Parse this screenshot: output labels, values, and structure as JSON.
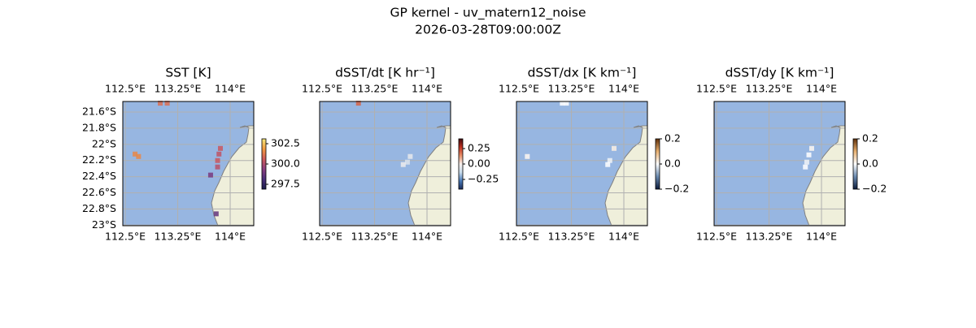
{
  "title": "GP kernel - uv_matern12_noise",
  "subtitle": "2026-03-28T09:00:00Z",
  "map": {
    "xlim": [
      112.465,
      114.337
    ],
    "ylim": [
      -23.007,
      -21.469
    ],
    "xticks": [
      {
        "value": 112.5,
        "label": "112.5°E"
      },
      {
        "value": 113.25,
        "label": "113.25°E"
      },
      {
        "value": 114,
        "label": "114°E"
      }
    ],
    "yticks": [
      {
        "value": -21.6,
        "label": "21.6°S"
      },
      {
        "value": -21.8,
        "label": "21.8°S"
      },
      {
        "value": -22,
        "label": "22°S"
      },
      {
        "value": -22.2,
        "label": "22.2°S"
      },
      {
        "value": -22.4,
        "label": "22.4°S"
      },
      {
        "value": -22.6,
        "label": "22.6°S"
      },
      {
        "value": -22.8,
        "label": "22.8°S"
      },
      {
        "value": -23,
        "label": "23°S"
      }
    ],
    "land_color": "#efefdb",
    "ocean_color": "#97b6e1",
    "coast_color": "#808080",
    "grid_color": "#b0b0b0"
  },
  "panels": [
    {
      "title": "SST [K]",
      "lat_labels": true,
      "cells": [
        [
          113.0,
          -21.49,
          301
        ],
        [
          113.1,
          -21.49,
          301
        ],
        [
          112.64,
          -22.12,
          301.5
        ],
        [
          112.69,
          -22.15,
          301.5
        ],
        [
          113.86,
          -22.05,
          300.5
        ],
        [
          113.84,
          -22.12,
          300.3
        ],
        [
          113.82,
          -22.2,
          300.5
        ],
        [
          113.82,
          -22.28,
          300.2
        ],
        [
          113.72,
          -22.38,
          299
        ],
        [
          113.8,
          -22.86,
          298.6
        ]
      ],
      "colorbar": {
        "lim": [
          296.9,
          303.1
        ],
        "ticks": [
          {
            "value": 302.5,
            "label": "302.5"
          },
          {
            "value": 300,
            "label": "300.0"
          },
          {
            "value": 297.5,
            "label": "297.5"
          }
        ],
        "colormap": [
          "#1a1c4a",
          "#4b2f7a",
          "#8c3f80",
          "#d05a5a",
          "#f29a40",
          "#f5e87a"
        ]
      }
    },
    {
      "title": "dSST/dt [K hr⁻¹]",
      "lat_labels": false,
      "cells": [
        [
          113.02,
          -21.49,
          0.2
        ],
        [
          113.76,
          -22.15,
          -0.05
        ],
        [
          113.72,
          -22.22,
          -0.08
        ],
        [
          113.66,
          -22.25,
          -0.03
        ]
      ],
      "colorbar": {
        "lim": [
          -0.408,
          0.408
        ],
        "ticks": [
          {
            "value": 0.25,
            "label": "0.25"
          },
          {
            "value": 0,
            "label": "0.00"
          },
          {
            "value": -0.25,
            "label": "−0.25"
          }
        ],
        "colormap": [
          "#1a2a5a",
          "#4a7ab8",
          "#c8dcec",
          "#f8f0ec",
          "#e8906a",
          "#c03020",
          "#400a10"
        ]
      }
    },
    {
      "title": "dSST/dx [K km⁻¹]",
      "lat_labels": false,
      "cells": [
        [
          113.12,
          -21.49,
          0
        ],
        [
          113.18,
          -21.49,
          0
        ],
        [
          112.62,
          -22.15,
          0.01
        ],
        [
          113.86,
          -22.05,
          0.02
        ],
        [
          113.8,
          -22.2,
          -0.01
        ],
        [
          113.77,
          -22.25,
          0
        ]
      ],
      "colorbar": {
        "lim": [
          -0.2,
          0.2
        ],
        "ticks": [
          {
            "value": 0.2,
            "label": "0.2"
          },
          {
            "value": 0,
            "label": "0.0"
          },
          {
            "value": -0.2,
            "label": "−0.2"
          }
        ],
        "colormap": [
          "#0a1a3a",
          "#6a8ab0",
          "#ffffff",
          "#e8b070",
          "#60300a"
        ]
      }
    },
    {
      "title": "dSST/dy [K km⁻¹]",
      "lat_labels": false,
      "cells": [
        [
          113.86,
          -22.05,
          0.01
        ],
        [
          113.82,
          -22.13,
          0
        ],
        [
          113.79,
          -22.22,
          -0.01
        ],
        [
          113.77,
          -22.28,
          0
        ]
      ],
      "colorbar": {
        "lim": [
          -0.2,
          0.2
        ],
        "ticks": [
          {
            "value": 0.2,
            "label": "0.2"
          },
          {
            "value": 0,
            "label": "0.0"
          },
          {
            "value": -0.2,
            "label": "−0.2"
          }
        ],
        "colormap": [
          "#0a1a3a",
          "#6a8ab0",
          "#ffffff",
          "#e8b070",
          "#60300a"
        ]
      }
    }
  ]
}
